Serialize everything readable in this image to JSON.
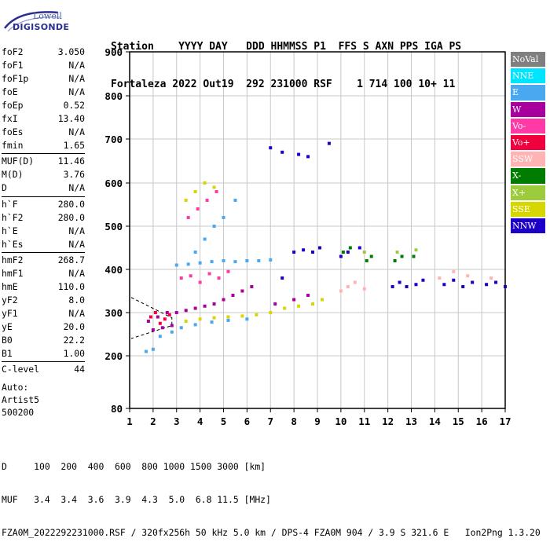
{
  "logo": {
    "line1": "Lowell",
    "line2": "DIGISONDE"
  },
  "header": {
    "labels": "Station    YYYY DAY   DDD HHMMSS P1  FFS S AXN PPS IGA PS",
    "values": "Fortaleza 2022 Out19  292 231000 RSF    1 714 100 10+ 11"
  },
  "params": {
    "group1": [
      {
        "name": "foF2",
        "value": "3.050"
      },
      {
        "name": "foF1",
        "value": "N/A"
      },
      {
        "name": "foF1p",
        "value": "N/A"
      },
      {
        "name": "foE",
        "value": "N/A"
      },
      {
        "name": "foEp",
        "value": "0.52"
      },
      {
        "name": "fxI",
        "value": "13.40"
      },
      {
        "name": "foEs",
        "value": "N/A"
      },
      {
        "name": "fmin",
        "value": "1.65"
      }
    ],
    "group2": [
      {
        "name": "MUF(D)",
        "value": "11.46"
      },
      {
        "name": "M(D)",
        "value": "3.76"
      },
      {
        "name": "D",
        "value": "N/A"
      }
    ],
    "group3": [
      {
        "name": "h`F",
        "value": "280.0"
      },
      {
        "name": "h`F2",
        "value": "280.0"
      },
      {
        "name": "h`E",
        "value": "N/A"
      },
      {
        "name": "h`Es",
        "value": "N/A"
      }
    ],
    "group4": [
      {
        "name": "hmF2",
        "value": "268.7"
      },
      {
        "name": "hmF1",
        "value": "N/A"
      },
      {
        "name": "hmE",
        "value": "110.0"
      },
      {
        "name": "yF2",
        "value": "8.0"
      },
      {
        "name": "yF1",
        "value": "N/A"
      },
      {
        "name": "yE",
        "value": "20.0"
      },
      {
        "name": "B0",
        "value": "22.2"
      },
      {
        "name": "B1",
        "value": "1.00"
      }
    ],
    "group5": [
      {
        "name": "C-level",
        "value": "44"
      }
    ]
  },
  "auto": {
    "line1": "Auto:",
    "line2": "Artist5",
    "line3": "500200"
  },
  "legend": [
    {
      "label": "NoVal",
      "color": "#7f7f7f"
    },
    {
      "label": "NNE",
      "color": "#00e5ff"
    },
    {
      "label": "E",
      "color": "#4aa8f0"
    },
    {
      "label": "W",
      "color": "#a8009c"
    },
    {
      "label": "Vo-",
      "color": "#ff3aa6"
    },
    {
      "label": "Vo+",
      "color": "#f0003c"
    },
    {
      "label": "SSW",
      "color": "#ffb3b3"
    },
    {
      "label": "X-",
      "color": "#007c00"
    },
    {
      "label": "X+",
      "color": "#9ccc3c"
    },
    {
      "label": "SSE",
      "color": "#d6d600"
    },
    {
      "label": "NNW",
      "color": "#1c00c8"
    }
  ],
  "chart_data": {
    "type": "scatter",
    "x_ticks": [
      "1",
      "2",
      "3",
      "4",
      "5",
      "6",
      "7",
      "8",
      "9",
      "10",
      "11",
      "12",
      "13",
      "14",
      "15",
      "16",
      "17"
    ],
    "y_ticks": [
      "80",
      "200",
      "300",
      "400",
      "500",
      "600",
      "700",
      "800",
      "900"
    ],
    "xlim": [
      1,
      17
    ],
    "ylim": [
      80,
      900
    ],
    "grid": true,
    "gridlines_y": [
      200,
      300,
      400,
      500,
      600,
      700,
      800
    ],
    "series": [
      {
        "name": "E",
        "points": [
          [
            1.7,
            210
          ],
          [
            2.0,
            215
          ],
          [
            2.3,
            245
          ],
          [
            2.8,
            255
          ],
          [
            3.2,
            265
          ],
          [
            3.8,
            272
          ],
          [
            4.5,
            278
          ],
          [
            5.2,
            282
          ],
          [
            6.0,
            285
          ],
          [
            3.0,
            410
          ],
          [
            3.5,
            412
          ],
          [
            4.0,
            415
          ],
          [
            4.5,
            418
          ],
          [
            5.0,
            420
          ],
          [
            5.5,
            418
          ],
          [
            6.0,
            420
          ],
          [
            6.5,
            420
          ],
          [
            7.0,
            422
          ],
          [
            3.8,
            440
          ],
          [
            4.2,
            470
          ],
          [
            4.6,
            500
          ],
          [
            5.0,
            520
          ],
          [
            5.5,
            560
          ]
        ]
      },
      {
        "name": "W",
        "points": [
          [
            1.8,
            280
          ],
          [
            2.2,
            290
          ],
          [
            2.6,
            300
          ],
          [
            3.0,
            300
          ],
          [
            3.4,
            305
          ],
          [
            3.8,
            310
          ],
          [
            4.2,
            315
          ],
          [
            4.6,
            320
          ],
          [
            5.0,
            330
          ],
          [
            5.4,
            340
          ],
          [
            5.8,
            350
          ],
          [
            6.2,
            360
          ],
          [
            2.0,
            260
          ],
          [
            2.4,
            265
          ],
          [
            2.8,
            270
          ],
          [
            7.2,
            320
          ],
          [
            8.0,
            330
          ],
          [
            8.6,
            340
          ]
        ]
      },
      {
        "name": "Vo-",
        "points": [
          [
            3.2,
            380
          ],
          [
            3.6,
            385
          ],
          [
            4.0,
            370
          ],
          [
            4.4,
            390
          ],
          [
            4.8,
            380
          ],
          [
            5.2,
            395
          ],
          [
            3.5,
            520
          ],
          [
            3.9,
            540
          ],
          [
            4.3,
            560
          ],
          [
            4.7,
            580
          ]
        ]
      },
      {
        "name": "Vo+",
        "points": [
          [
            1.9,
            290
          ],
          [
            2.1,
            300
          ],
          [
            2.3,
            275
          ],
          [
            2.5,
            285
          ],
          [
            2.7,
            295
          ]
        ]
      },
      {
        "name": "SSE",
        "points": [
          [
            3.4,
            280
          ],
          [
            4.0,
            285
          ],
          [
            4.6,
            288
          ],
          [
            5.2,
            290
          ],
          [
            5.8,
            292
          ],
          [
            6.4,
            295
          ],
          [
            7.0,
            300
          ],
          [
            7.6,
            310
          ],
          [
            8.2,
            315
          ],
          [
            8.8,
            320
          ],
          [
            9.2,
            330
          ],
          [
            3.4,
            560
          ],
          [
            3.8,
            580
          ],
          [
            4.2,
            600
          ],
          [
            4.6,
            590
          ]
        ]
      },
      {
        "name": "NNW",
        "points": [
          [
            7.0,
            680
          ],
          [
            7.5,
            670
          ],
          [
            8.2,
            665
          ],
          [
            8.6,
            660
          ],
          [
            9.5,
            690
          ],
          [
            7.5,
            380
          ],
          [
            8.0,
            440
          ],
          [
            8.4,
            445
          ],
          [
            8.8,
            440
          ],
          [
            9.1,
            450
          ],
          [
            10.0,
            430
          ],
          [
            10.3,
            440
          ],
          [
            10.8,
            450
          ],
          [
            12.2,
            360
          ],
          [
            12.5,
            370
          ],
          [
            12.8,
            360
          ],
          [
            13.2,
            365
          ],
          [
            13.5,
            375
          ],
          [
            14.4,
            365
          ],
          [
            14.8,
            375
          ],
          [
            15.2,
            360
          ],
          [
            15.6,
            370
          ],
          [
            16.2,
            365
          ],
          [
            16.6,
            370
          ],
          [
            17.0,
            360
          ]
        ]
      },
      {
        "name": "X-",
        "points": [
          [
            10.1,
            440
          ],
          [
            10.4,
            450
          ],
          [
            11.1,
            420
          ],
          [
            11.3,
            430
          ],
          [
            12.3,
            420
          ],
          [
            12.6,
            430
          ],
          [
            13.1,
            430
          ]
        ]
      },
      {
        "name": "SSW",
        "points": [
          [
            10.0,
            350
          ],
          [
            10.3,
            360
          ],
          [
            10.6,
            370
          ],
          [
            11.0,
            355
          ],
          [
            14.2,
            380
          ],
          [
            14.8,
            395
          ],
          [
            15.4,
            385
          ],
          [
            16.4,
            380
          ]
        ]
      },
      {
        "name": "X+",
        "points": [
          [
            12.4,
            440
          ],
          [
            13.2,
            445
          ],
          [
            11.0,
            440
          ]
        ]
      }
    ]
  },
  "footer": {
    "line1": "D     100  200  400  600  800 1000 1500 3000 [km]",
    "line2": "MUF   3.4  3.4  3.6  3.9  4.3  5.0  6.8 11.5 [MHz]",
    "line3": "FZA0M_2022292231000.RSF / 320fx256h 50 kHz 5.0 km / DPS-4 FZA0M 904 / 3.9 S 321.6 E   Ion2Png 1.3.20"
  }
}
